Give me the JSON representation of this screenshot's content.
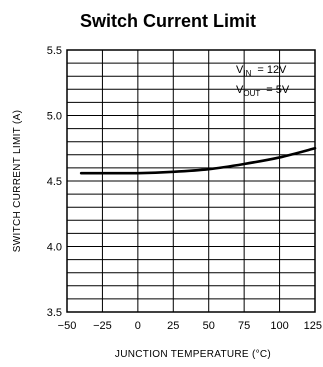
{
  "chart_data": {
    "type": "line",
    "title": "Switch Current Limit",
    "xlabel": "JUNCTION TEMPERATURE (°C)",
    "ylabel": "SWITCH CURRENT LIMIT (A)",
    "xlim": [
      -50,
      125
    ],
    "ylim": [
      3.5,
      5.5
    ],
    "x_ticks": [
      -50,
      -25,
      0,
      25,
      50,
      75,
      100,
      125
    ],
    "x_tick_labels": [
      "−50",
      "−25",
      "0",
      "25",
      "50",
      "75",
      "100",
      "125"
    ],
    "y_ticks": [
      3.5,
      4.0,
      4.5,
      5.0,
      5.5
    ],
    "y_tick_labels": [
      "3.5",
      "4.0",
      "4.5",
      "5.0",
      "5.5"
    ],
    "grid": true,
    "annotations": {
      "vin": {
        "symbol": "V",
        "sub": "IN",
        "value": "= 12V"
      },
      "vout": {
        "symbol": "V",
        "sub": "OUT",
        "value": "= 5V"
      }
    },
    "series": [
      {
        "x": [
          -40,
          -25,
          0,
          25,
          50,
          75,
          100,
          125
        ],
        "y": [
          4.56,
          4.56,
          4.56,
          4.57,
          4.59,
          4.63,
          4.68,
          4.75
        ]
      }
    ]
  }
}
